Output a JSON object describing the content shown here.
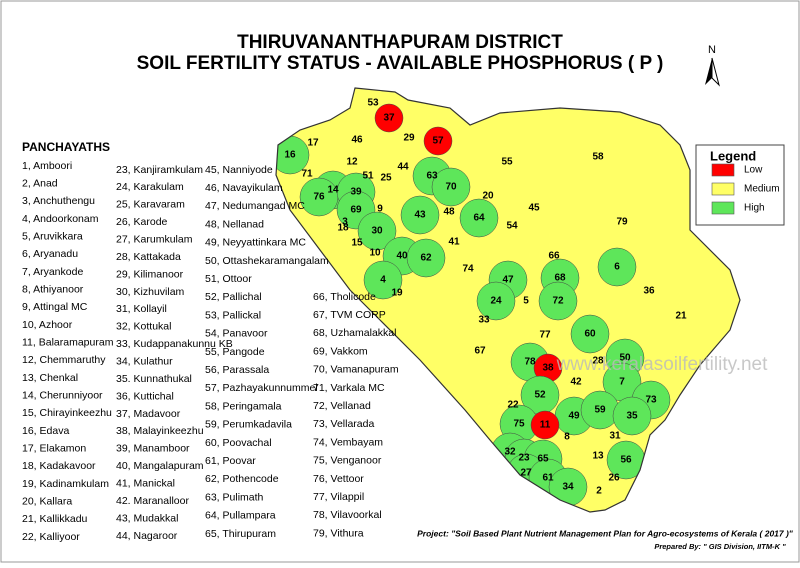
{
  "header": {
    "title": [
      "THIRUVANANTHAPURAM DISTRICT",
      "SOIL FERTILITY STATUS - AVAILABLE PHOSPHORUS ( P )"
    ]
  },
  "north": "N",
  "panchayaths": {
    "heading": "PANCHAYATHS",
    "items": [
      "1, Amboori",
      "2, Anad",
      "3, Anchuthengu",
      "4, Andoorkonam",
      "5, Aruvikkara",
      "6, Aryanadu",
      "7, Aryankode",
      "8, Athiyanoor",
      "9, Attingal MC",
      "10, Azhoor",
      "11, Balaramapuram",
      "12, Chemmaruthy",
      "13, Chenkal",
      "14, Cherunniyoor",
      "15, Chirayinkeezhu",
      "16, Edava",
      "17, Elakamon",
      "18, Kadakavoor",
      "19, Kadinamkulam",
      "20, Kallara",
      "21, Kallikkadu",
      "22, Kalliyoor",
      "23, Kanjiramkulam",
      "24, Karakulam",
      "25, Karavaram",
      "26, Karode",
      "27, Karumkulam",
      "28, Kattakada",
      "29, Kilimanoor",
      "30, Kizhuvilam",
      "31, Kollayil",
      "32, Kottukal",
      "33, Kudappanakunnu KB",
      "34, Kulathur",
      "35. Kunnathukal",
      "36, Kuttichal",
      "37, Madavoor",
      "38, Malayinkeezhu",
      "39, Manamboor",
      "40, Mangalapuram",
      "41, Manickal",
      "42. Maranalloor",
      "43, Mudakkal",
      "44, Nagaroor",
      "45, Nanniyode",
      "46, Navayikulam",
      "47, Nedumangad MC",
      "48, Nellanad",
      "49, Neyyattinkara MC",
      "50, Ottashekaramangalam",
      "51, Ottoor",
      "52, Pallichal",
      "53, Pallickal",
      "54, Panavoor",
      "55, Pangode",
      "56, Parassala",
      "57, Pazhayakunnummel",
      "58, Peringamala",
      "59, Perumkadavila",
      "60, Poovachal",
      "61, Poovar",
      "62, Pothencode",
      "63, Pulimath",
      "64, Pullampara",
      "65, Thirupuram",
      "66, Tholicode",
      "67, TVM CORP",
      "68, Uzhamalakkal",
      "69, Vakkom",
      "70, Vamanapuram",
      "71, Varkala MC",
      "72, Vellanad",
      "73, Vellarada",
      "74, Vembayam",
      "75, Venganoor",
      "76, Vettoor",
      "77, Vilappil",
      "78, Vilavoorkal",
      "79, Vithura"
    ]
  },
  "legend": {
    "title": "Legend",
    "items": [
      {
        "label": "Low",
        "color": "#ff0000"
      },
      {
        "label": "Medium",
        "color": "#ffff66"
      },
      {
        "label": "High",
        "color": "#5ee65a"
      }
    ]
  },
  "map_labels": [
    {
      "label": "53",
      "fertility": "Medium"
    },
    {
      "label": "37",
      "fertility": "Low"
    },
    {
      "label": "29",
      "fertility": "Medium"
    },
    {
      "label": "57",
      "fertility": "Low"
    },
    {
      "label": "46",
      "fertility": "Medium"
    },
    {
      "label": "17",
      "fertility": "Medium"
    },
    {
      "label": "16",
      "fertility": "High"
    },
    {
      "label": "55",
      "fertility": "Medium"
    },
    {
      "label": "58",
      "fertility": "Medium"
    },
    {
      "label": "71",
      "fertility": "Medium"
    },
    {
      "label": "12",
      "fertility": "Medium"
    },
    {
      "label": "51",
      "fertility": "Medium"
    },
    {
      "label": "25",
      "fertility": "Medium"
    },
    {
      "label": "44",
      "fertility": "Medium"
    },
    {
      "label": "63",
      "fertility": "High"
    },
    {
      "label": "70",
      "fertility": "High"
    },
    {
      "label": "20",
      "fertility": "Medium"
    },
    {
      "label": "45",
      "fertility": "Medium"
    },
    {
      "label": "79",
      "fertility": "Medium"
    },
    {
      "label": "14",
      "fertility": "High"
    },
    {
      "label": "76",
      "fertility": "High"
    },
    {
      "label": "39",
      "fertility": "High"
    },
    {
      "label": "69",
      "fertility": "High"
    },
    {
      "label": "9",
      "fertility": "Medium"
    },
    {
      "label": "3",
      "fertility": "Medium"
    },
    {
      "label": "18",
      "fertility": "Medium"
    },
    {
      "label": "30",
      "fertility": "High"
    },
    {
      "label": "43",
      "fertility": "High"
    },
    {
      "label": "48",
      "fertility": "Medium"
    },
    {
      "label": "64",
      "fertility": "High"
    },
    {
      "label": "54",
      "fertility": "Medium"
    },
    {
      "label": "15",
      "fertility": "Medium"
    },
    {
      "label": "41",
      "fertility": "Medium"
    },
    {
      "label": "10",
      "fertility": "Medium"
    },
    {
      "label": "40",
      "fertility": "High"
    },
    {
      "label": "62",
      "fertility": "High"
    },
    {
      "label": "74",
      "fertility": "Medium"
    },
    {
      "label": "66",
      "fertility": "Medium"
    },
    {
      "label": "6",
      "fertility": "High"
    },
    {
      "label": "68",
      "fertility": "High"
    },
    {
      "label": "4",
      "fertility": "High"
    },
    {
      "label": "47",
      "fertility": "High"
    },
    {
      "label": "19",
      "fertility": "Medium"
    },
    {
      "label": "24",
      "fertility": "High"
    },
    {
      "label": "5",
      "fertility": "Medium"
    },
    {
      "label": "72",
      "fertility": "High"
    },
    {
      "label": "36",
      "fertility": "Medium"
    },
    {
      "label": "33",
      "fertility": "Medium"
    },
    {
      "label": "21",
      "fertility": "Medium"
    },
    {
      "label": "60",
      "fertility": "High"
    },
    {
      "label": "77",
      "fertility": "Medium"
    },
    {
      "label": "67",
      "fertility": "Medium"
    },
    {
      "label": "78",
      "fertility": "High"
    },
    {
      "label": "38",
      "fertility": "Low"
    },
    {
      "label": "28",
      "fertility": "Medium"
    },
    {
      "label": "50",
      "fertility": "High"
    },
    {
      "label": "42",
      "fertility": "Medium"
    },
    {
      "label": "7",
      "fertility": "High"
    },
    {
      "label": "73",
      "fertility": "High"
    },
    {
      "label": "52",
      "fertility": "High"
    },
    {
      "label": "22",
      "fertility": "Medium"
    },
    {
      "label": "75",
      "fertility": "High"
    },
    {
      "label": "49",
      "fertility": "High"
    },
    {
      "label": "59",
      "fertility": "High"
    },
    {
      "label": "35",
      "fertility": "High"
    },
    {
      "label": "11",
      "fertility": "Low"
    },
    {
      "label": "8",
      "fertility": "Medium"
    },
    {
      "label": "31",
      "fertility": "Medium"
    },
    {
      "label": "32",
      "fertility": "High"
    },
    {
      "label": "23",
      "fertility": "High"
    },
    {
      "label": "65",
      "fertility": "High"
    },
    {
      "label": "13",
      "fertility": "Medium"
    },
    {
      "label": "56",
      "fertility": "High"
    },
    {
      "label": "27",
      "fertility": "High"
    },
    {
      "label": "61",
      "fertility": "High"
    },
    {
      "label": "34",
      "fertility": "High"
    },
    {
      "label": "26",
      "fertility": "Medium"
    },
    {
      "label": "2",
      "fertility": "Medium"
    }
  ],
  "watermark": "www.keralasoilfertility.net",
  "footer": {
    "project": "Project: \"Soil Based Plant Nutrient Management Plan for Agro-ecosystems of Kerala ( 2017 )\"",
    "prepared": "Prepared By: \" GIS Division, IITM-K \""
  }
}
